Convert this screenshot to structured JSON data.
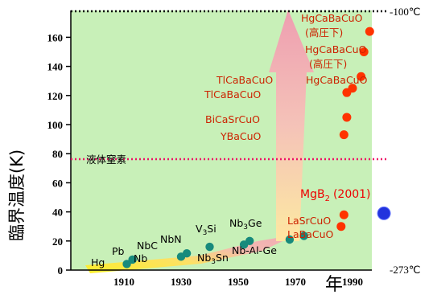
{
  "chart_data": {
    "type": "scatter",
    "xlabel": "年",
    "ylabel": "臨界温度(K)",
    "xlim": [
      1895,
      2035
    ],
    "ylim": [
      0,
      175
    ],
    "x_ticks": [
      "1910",
      "1930",
      "1950",
      "1970",
      "1990"
    ],
    "x_tick_values": [
      1910,
      1930,
      1950,
      1970,
      1990
    ],
    "y_ticks": [
      "0",
      "20",
      "40",
      "60",
      "80",
      "100",
      "120",
      "140",
      "160"
    ],
    "y_tick_values": [
      0,
      20,
      40,
      60,
      80,
      100,
      120,
      140,
      160
    ],
    "reference_lines": [
      {
        "name": "upper",
        "y": 177,
        "label": "-100°C",
        "style": "dotted",
        "color": "#000000"
      },
      {
        "name": "liquid-nitrogen",
        "y": 77,
        "label": "液体窒素",
        "style": "dotted",
        "color": "#ee1166"
      }
    ],
    "bottom_label": "-273°C",
    "series": [
      {
        "color": "#178a7c",
        "points": [
          {
            "x": 1911,
            "y": 4.2,
            "label": "Hg"
          },
          {
            "x": 1913,
            "y": 7.2,
            "label": "Pb"
          },
          {
            "x": 1930,
            "y": 9.2,
            "label": "Nb"
          },
          {
            "x": 1932,
            "y": 11.5,
            "label": "NbC"
          },
          {
            "x": 1940,
            "y": 16.0,
            "label": "NbN"
          },
          {
            "x": 1952,
            "y": 17.5,
            "label": "V3Si"
          },
          {
            "x": 1954,
            "y": 20.0,
            "label": "Nb3Sn"
          },
          {
            "x": 1968,
            "y": 21.0,
            "label": "Nb-Al-Ge"
          },
          {
            "x": 1973,
            "y": 23.5,
            "label": "Nb3Ge"
          }
        ]
      },
      {
        "color": "#ff3300",
        "points": [
          {
            "x": 1986,
            "y": 30,
            "label": "LaBaCuO"
          },
          {
            "x": 1987,
            "y": 38,
            "label": "LaSrCuO"
          },
          {
            "x": 1987,
            "y": 93,
            "label": "YBaCuO"
          },
          {
            "x": 1988,
            "y": 105,
            "label": "BiCaSrCuO"
          },
          {
            "x": 1988,
            "y": 122,
            "label": "TlCaBaCuO"
          },
          {
            "x": 1990,
            "y": 125,
            "label": "TlCaBaCuO"
          },
          {
            "x": 1993,
            "y": 133,
            "label": "HgCaBaCuO"
          },
          {
            "x": 1994,
            "y": 150,
            "label": "HgCaBaCuO (高圧下)"
          },
          {
            "x": 1996,
            "y": 164,
            "label": "HgCaBaCuO (高圧下)"
          }
        ]
      },
      {
        "color": "#2233dd",
        "points": [
          {
            "x": 2001,
            "y": 39,
            "label": "MgB2 (2001)"
          }
        ]
      }
    ]
  },
  "labels": {
    "hg": "Hg",
    "pb": "Pb",
    "nb": "Nb",
    "nbc": "NbC",
    "nbn": "NbN",
    "v3si_v": "V",
    "v3si_sub": "3",
    "v3si_si": "Si",
    "nb3sn_nb": "Nb",
    "nb3sn_sub": "3",
    "nb3sn_sn": "Sn",
    "nb3ge_nb": "Nb",
    "nb3ge_sub": "3",
    "nb3ge_ge": "Ge",
    "nbalge": "Nb-Al-Ge",
    "labacuo": "LaBaCuO",
    "lasrcuo": "LaSrCuO",
    "ybacuo": "YBaCuO",
    "bicasrcuo": "BiCaSrCuO",
    "tlcabacuo_1": "TlCaBaCuO",
    "tlcabacuo_2": "TlCaBaCuO",
    "hgcabacuo_1": "HgCaBaCuO",
    "hgcabacuo_2": "HgCaBaCuO",
    "hgcabacuo_3": "HgCaBaCuO",
    "pressure_1": "(高圧下)",
    "pressure_2": "(高圧下)",
    "mgb2_mg": "MgB",
    "mgb2_sub": "2",
    "mgb2_year": "(2001)",
    "ln2": "液体窒素",
    "upper_temp": "-100℃",
    "lower_temp": "-273℃",
    "xlabel": "年",
    "ylabel": "臨界温度(K)"
  },
  "colors": {
    "plot_bg": "#c8f0b8",
    "arrow_pink": "#f2a0b4",
    "arrow_yellow": "#ffee22",
    "conventional_dot": "#178a7c",
    "cuprate_dot": "#ff3300",
    "mgb2_dot": "#2233dd"
  }
}
